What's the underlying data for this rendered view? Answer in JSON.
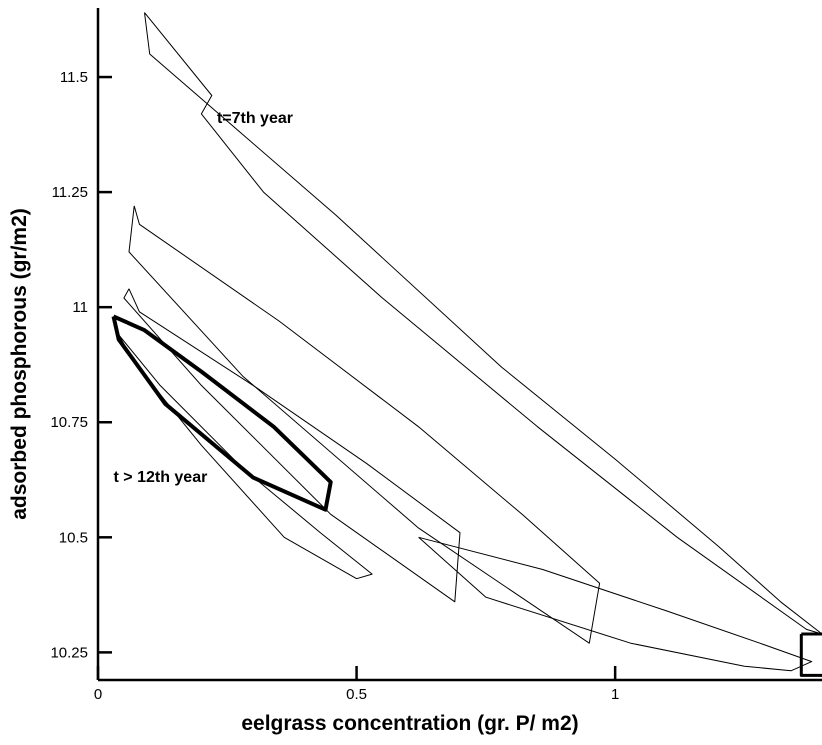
{
  "chart_data": {
    "type": "line",
    "title": "",
    "xlabel": "eelgrass concentration  (gr. P/ m2)",
    "ylabel": "adsorbed phosphorous (gr/m2)",
    "xlim": [
      0,
      1.4
    ],
    "ylim": [
      10.19,
      11.65
    ],
    "x_ticks": [
      {
        "value": 0,
        "label": "0"
      },
      {
        "value": 0.5,
        "label": "0.5"
      },
      {
        "value": 1,
        "label": "1"
      }
    ],
    "y_ticks": [
      {
        "value": 10.25,
        "label": "10.25"
      },
      {
        "value": 10.5,
        "label": "10.5"
      },
      {
        "value": 10.75,
        "label": "10.75"
      },
      {
        "value": 11,
        "label": "11"
      },
      {
        "value": 11.25,
        "label": "11.25"
      },
      {
        "value": 11.5,
        "label": "11.5"
      }
    ],
    "grid": false,
    "legend": "none",
    "annotations": [
      {
        "text": "t=7th year",
        "x": 0.23,
        "y": 11.4
      },
      {
        "text": "t > 12th year",
        "x": 0.03,
        "y": 10.62
      }
    ],
    "series": [
      {
        "line_width": 1,
        "x": [
          0.09,
          0.1,
          0.46,
          0.78,
          1.0,
          1.2,
          1.32,
          1.4,
          1.37,
          1.12,
          0.85,
          0.55,
          0.32,
          0.2,
          0.22,
          0.09
        ],
        "y": [
          11.64,
          11.55,
          11.2,
          10.87,
          10.67,
          10.48,
          10.36,
          10.29,
          10.3,
          10.5,
          10.74,
          11.02,
          11.25,
          11.42,
          11.46,
          11.64
        ]
      },
      {
        "line_width": 1,
        "x": [
          0.07,
          0.08,
          0.35,
          0.62,
          0.82,
          0.97,
          0.95,
          0.62,
          0.28,
          0.06,
          0.07
        ],
        "y": [
          11.22,
          11.18,
          10.97,
          10.74,
          10.55,
          10.4,
          10.27,
          10.52,
          10.85,
          11.12,
          11.22
        ]
      },
      {
        "line_width": 1,
        "x": [
          0.06,
          0.08,
          0.3,
          0.52,
          0.7,
          0.69,
          0.45,
          0.2,
          0.05,
          0.06
        ],
        "y": [
          11.04,
          10.99,
          10.83,
          10.66,
          10.51,
          10.36,
          10.55,
          10.83,
          11.02,
          11.04
        ]
      },
      {
        "line_width": 4,
        "x": [
          0.03,
          0.09,
          0.2,
          0.34,
          0.45,
          0.44,
          0.3,
          0.13,
          0.04,
          0.03
        ],
        "y": [
          10.98,
          10.95,
          10.86,
          10.74,
          10.62,
          10.56,
          10.63,
          10.79,
          10.93,
          10.98
        ]
      },
      {
        "line_width": 1,
        "x": [
          0.04,
          0.12,
          0.28,
          0.43,
          0.53,
          0.5,
          0.36,
          0.2,
          0.07,
          0.04
        ],
        "y": [
          10.94,
          10.83,
          10.65,
          10.51,
          10.42,
          10.41,
          10.5,
          10.7,
          10.88,
          10.94
        ]
      },
      {
        "line_width": 1,
        "x": [
          0.62,
          0.86,
          1.1,
          1.28,
          1.38,
          1.34,
          1.25,
          1.03,
          0.75,
          0.62
        ],
        "y": [
          10.5,
          10.43,
          10.34,
          10.27,
          10.23,
          10.21,
          10.22,
          10.27,
          10.37,
          10.5
        ]
      },
      {
        "line_width": 3,
        "x": [
          1.36,
          1.41,
          1.41,
          1.36,
          1.36
        ],
        "y": [
          10.29,
          10.29,
          10.2,
          10.2,
          10.29
        ]
      }
    ]
  }
}
